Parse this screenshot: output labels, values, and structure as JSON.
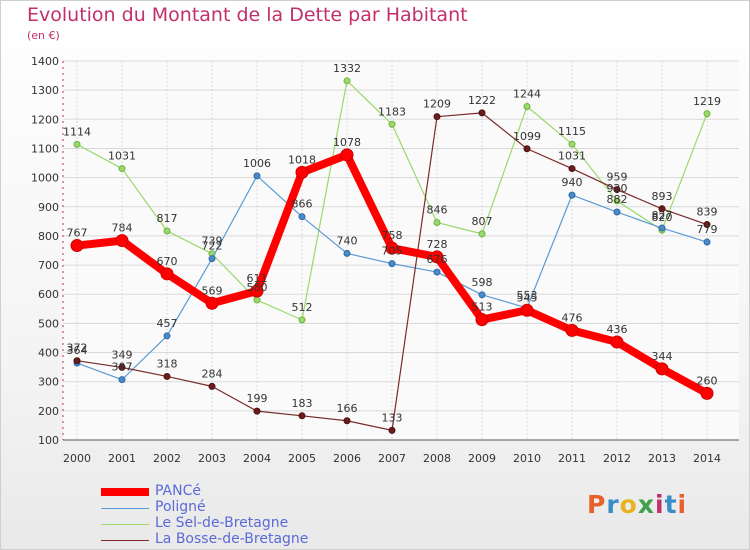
{
  "header": {
    "title": "Evolution du Montant de la Dette par Habitant",
    "subtitle": "(en €)"
  },
  "logo": {
    "text": "Proxiti",
    "colors": [
      "#e8612c",
      "#3a8dc8",
      "#e8b320",
      "#3fa14a",
      "#c2306a",
      "#3a8dc8",
      "#e8612c"
    ]
  },
  "chart_data": {
    "type": "line",
    "title": "Evolution du Montant de la Dette par Habitant",
    "subtitle": "(en €)",
    "xlabel": "",
    "ylabel": "",
    "x": [
      "2000",
      "2001",
      "2002",
      "2003",
      "2004",
      "2005",
      "2006",
      "2007",
      "2008",
      "2009",
      "2010",
      "2011",
      "2012",
      "2013",
      "2014"
    ],
    "yticks": [
      100,
      200,
      300,
      400,
      500,
      600,
      700,
      800,
      900,
      1000,
      1100,
      1200,
      1300,
      1400
    ],
    "ylim": [
      100,
      1400
    ],
    "grid": true,
    "legend_position": "bottom-left",
    "series": [
      {
        "name": "PANCé",
        "color": "#ff0000",
        "values": [
          767,
          784,
          670,
          569,
          611,
          1018,
          1078,
          758,
          728,
          513,
          545,
          476,
          436,
          344,
          260
        ]
      },
      {
        "name": "Poligné",
        "color": "#5b9bd5",
        "values": [
          364,
          307,
          457,
          722,
          1006,
          866,
          740,
          705,
          676,
          598,
          553,
          940,
          882,
          827,
          779
        ]
      },
      {
        "name": "Le Sel-de-Bretagne",
        "color": "#9bd96b",
        "values": [
          1114,
          1031,
          817,
          739,
          580,
          512,
          1332,
          1183,
          846,
          807,
          1244,
          1115,
          920,
          820,
          1219
        ]
      },
      {
        "name": "La Bosse-de-Bretagne",
        "color": "#7b2a2a",
        "values": [
          372,
          349,
          318,
          284,
          199,
          183,
          166,
          133,
          1209,
          1222,
          1099,
          1031,
          959,
          893,
          839
        ]
      }
    ]
  }
}
